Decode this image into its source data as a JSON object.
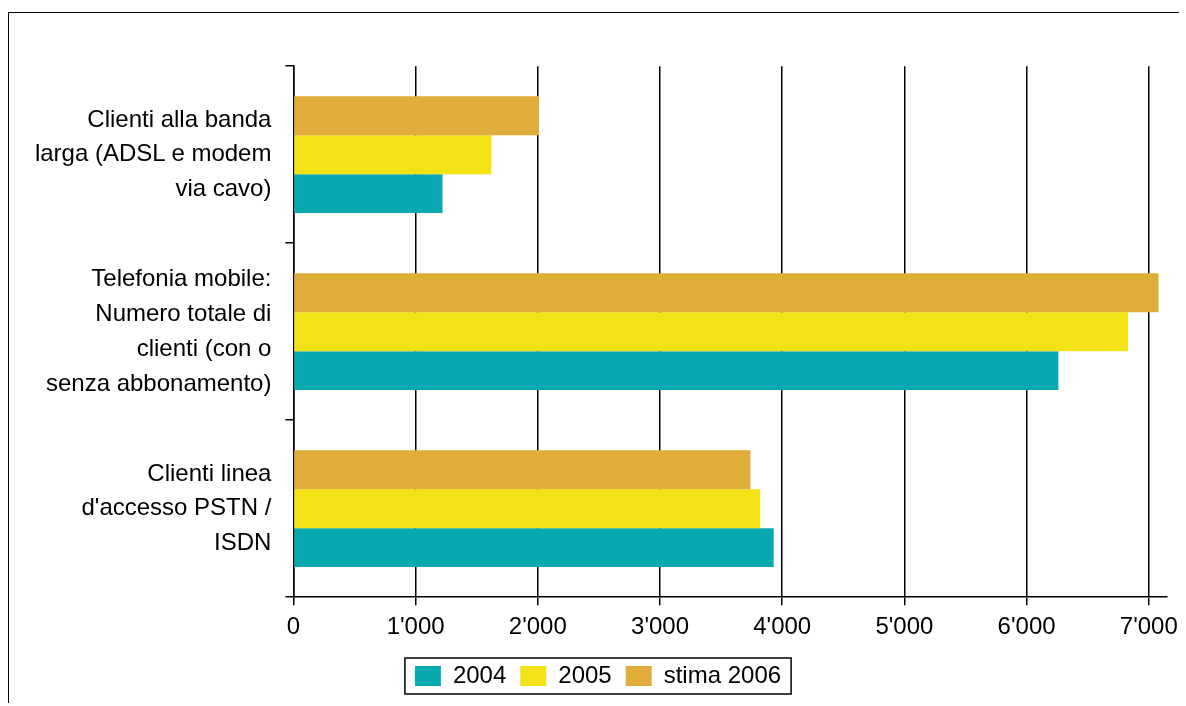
{
  "chart_data": {
    "type": "bar",
    "orientation": "horizontal",
    "categories": [
      "Clienti alla banda larga (ADSL e modem via cavo)",
      "Telefonia mobile: Numero totale di clienti (con o senza abbonamento)",
      "Clienti linea d'accesso PSTN / ISDN"
    ],
    "series": [
      {
        "name": "2004",
        "color": "#08a8b0",
        "values": [
          1220,
          6260,
          3930
        ]
      },
      {
        "name": "2005",
        "color": "#f2e216",
        "values": [
          1620,
          6830,
          3820
        ]
      },
      {
        "name": "stima 2006",
        "color": "#e0ad3a",
        "values": [
          2010,
          7080,
          3740
        ]
      }
    ],
    "xlim": [
      0,
      7150
    ],
    "xticks": [
      0,
      {
        "value": 1000,
        "label": "1'000"
      },
      {
        "value": 2000,
        "label": "2'000"
      },
      {
        "value": 3000,
        "label": "3'000"
      },
      {
        "value": 4000,
        "label": "4'000"
      },
      {
        "value": 5000,
        "label": "5'000"
      },
      {
        "value": 6000,
        "label": "6'000"
      },
      {
        "value": 7000,
        "label": "7'000"
      }
    ],
    "grid": "x",
    "legend": "bottom"
  }
}
